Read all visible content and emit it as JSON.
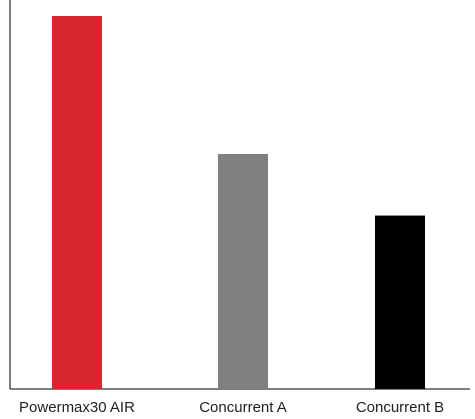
{
  "chart_data": {
    "type": "bar",
    "title": "",
    "xlabel": "",
    "ylabel": "",
    "categories": [
      "Powermax30 AIR",
      "Concurrent A",
      "Concurrent B"
    ],
    "values": [
      100,
      63,
      46.5
    ],
    "colors": [
      "#d7282f",
      "#808083",
      "#000000"
    ],
    "ylim": [
      0,
      100
    ],
    "grid": false,
    "legend": "none"
  }
}
